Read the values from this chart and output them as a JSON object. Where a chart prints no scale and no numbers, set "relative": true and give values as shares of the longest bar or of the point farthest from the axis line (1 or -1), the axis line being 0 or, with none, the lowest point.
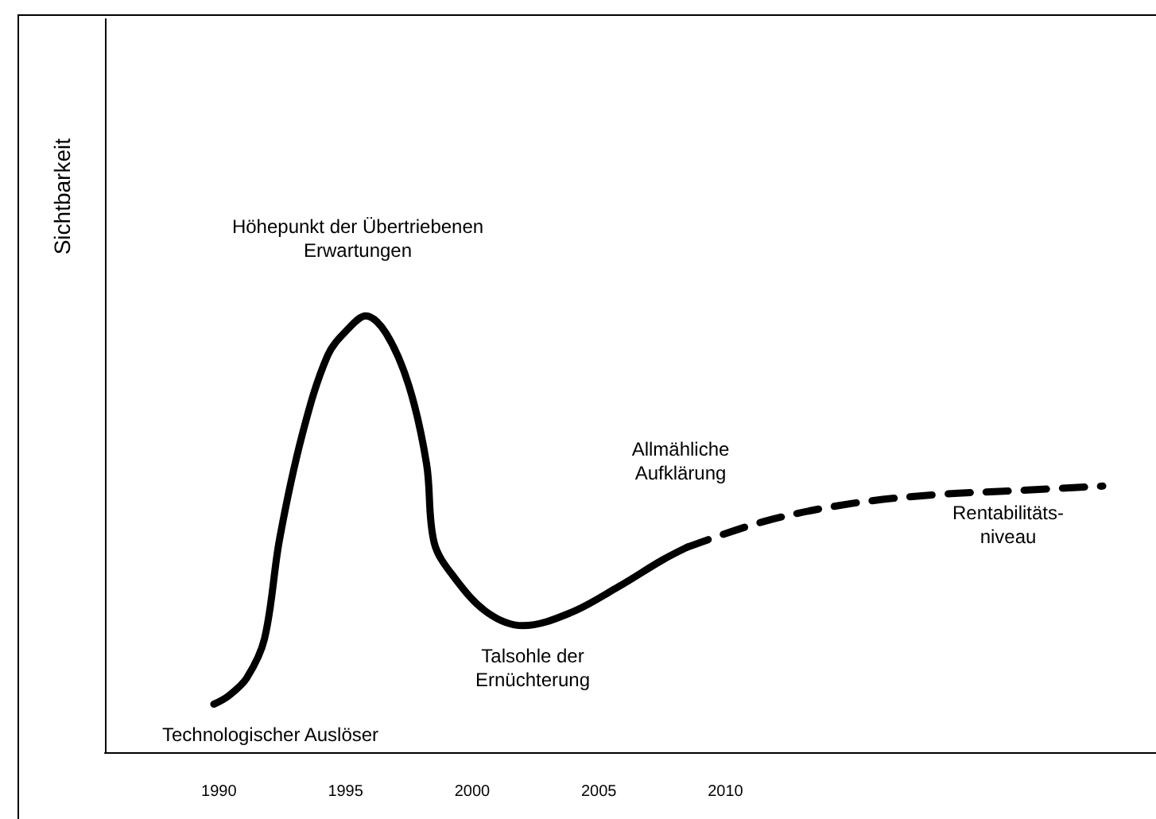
{
  "chart_data": {
    "type": "line",
    "relative": true,
    "ylabel": "Sichtbarkeit",
    "xlim": [
      1985.5,
      2027
    ],
    "xticks": [
      1990,
      1995,
      2000,
      2005,
      2010
    ],
    "marker": "none",
    "series": [
      {
        "color": "#000000",
        "line_style": "solid",
        "x": [
          1989.8,
          1990.4,
          1991.1,
          1991.8,
          1992.4,
          1993.3,
          1994.3,
          1995.1,
          1995.8,
          1996.6,
          1997.5,
          1998.2,
          1998.5,
          1999.3,
          2000.6,
          2002.0,
          2003.9,
          2005.8,
          2007.5,
          2008.5
        ],
        "values": [
          0.11,
          0.13,
          0.17,
          0.26,
          0.49,
          0.73,
          0.91,
          0.97,
          1.0,
          0.96,
          0.84,
          0.66,
          0.48,
          0.4,
          0.32,
          0.29,
          0.32,
          0.38,
          0.44,
          0.47
        ]
      },
      {
        "color": "#000000",
        "line_style": "dashed",
        "x": [
          2008.5,
          2011.6,
          2015.0,
          2018.3,
          2021.7,
          2024.9
        ],
        "values": [
          0.47,
          0.53,
          0.57,
          0.59,
          0.6,
          0.61
        ]
      }
    ],
    "annotations": [
      "Höhepunkt der Übertriebenen\nErwartungen",
      "Allmähliche\nAufklärung",
      "Talsohle der\nErnüchterung",
      "Rentabilitäts-\nniveau",
      "Technologischer Auslöser"
    ]
  }
}
